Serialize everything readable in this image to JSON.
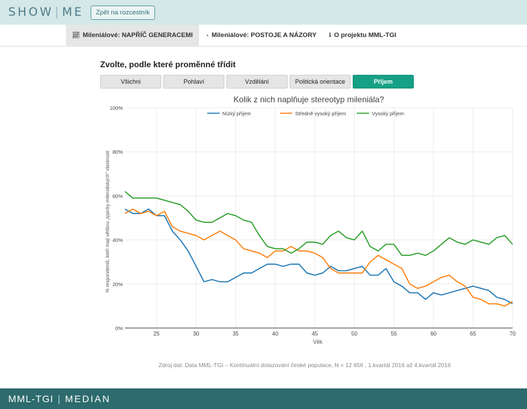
{
  "header": {
    "logo_left": "SHOW",
    "logo_right": "ME",
    "back_label": "Zpět na rozcestník"
  },
  "nav": {
    "items": [
      {
        "label": "Mileniálové: NAPŘÍČ GENERACEMI",
        "icon": "line-chart-icon"
      },
      {
        "label": "Mileniálové: POSTOJE A NÁZORY",
        "icon": "pie-chart-icon"
      },
      {
        "label": "O projektu MML-TGI",
        "icon": "info-icon"
      }
    ]
  },
  "prompt": "Zvolte, podle které proměnné třídit",
  "filters": [
    "Všichni",
    "Pohlaví",
    "Vzdělání",
    "Politická orientace",
    "Příjem"
  ],
  "active_filter": "Příjem",
  "colors": {
    "accent": "#16a085",
    "series_low": "#1f77b4",
    "series_mid": "#ff7f0e",
    "series_high": "#2ca02c"
  },
  "chart_data": {
    "type": "line",
    "title": "Kolik z nich naplňuje stereotyp mileniála?",
    "xlabel": "Věk",
    "ylabel": "% respondentů, kteří mají většinu „typicky mileniálských\" vlastností",
    "xlim": [
      21,
      70
    ],
    "ylim": [
      0,
      100
    ],
    "x_ticks": [
      25,
      30,
      35,
      40,
      45,
      50,
      55,
      60,
      65,
      70
    ],
    "y_ticks": [
      0,
      20,
      40,
      60,
      80,
      100
    ],
    "y_tick_labels": [
      "0%",
      "20%",
      "40%",
      "60%",
      "80%",
      "100%"
    ],
    "legend_position": "top",
    "grid": true,
    "x": [
      21,
      22,
      23,
      24,
      25,
      26,
      27,
      28,
      29,
      30,
      31,
      32,
      33,
      34,
      35,
      36,
      37,
      38,
      39,
      40,
      41,
      42,
      43,
      44,
      45,
      46,
      47,
      48,
      49,
      50,
      51,
      52,
      53,
      54,
      55,
      56,
      57,
      58,
      59,
      60,
      61,
      62,
      63,
      64,
      65,
      66,
      67,
      68,
      69,
      70
    ],
    "series": [
      {
        "name": "Nízký příjem",
        "color": "#1f77b4",
        "values": [
          54,
          52,
          52,
          54,
          51,
          51,
          44,
          40,
          35,
          28,
          21,
          22,
          21,
          21,
          23,
          25,
          25,
          27,
          29,
          29,
          28,
          29,
          29,
          25,
          24,
          25,
          28,
          26,
          26,
          27,
          28,
          24,
          24,
          27,
          21,
          19,
          16,
          16,
          13,
          16,
          15,
          16,
          17,
          18,
          19,
          18,
          17,
          14,
          13,
          11
        ]
      },
      {
        "name": "Středně vysoký příjem",
        "color": "#ff7f0e",
        "values": [
          52,
          54,
          52,
          53,
          51,
          53,
          46,
          44,
          43,
          42,
          40,
          42,
          44,
          42,
          40,
          36,
          35,
          34,
          32,
          35,
          35,
          37,
          35,
          35,
          34,
          32,
          27,
          25,
          25,
          25,
          25,
          30,
          33,
          31,
          29,
          27,
          20,
          18,
          19,
          21,
          23,
          24,
          21,
          19,
          14,
          13,
          11,
          11,
          10,
          12
        ]
      },
      {
        "name": "Vysoký příjem",
        "color": "#2ca02c",
        "values": [
          62,
          59,
          59,
          59,
          59,
          58,
          57,
          56,
          53,
          49,
          48,
          48,
          50,
          52,
          51,
          49,
          48,
          42,
          37,
          36,
          36,
          34,
          36,
          39,
          39,
          38,
          42,
          44,
          41,
          40,
          44,
          37,
          35,
          38,
          38,
          33,
          33,
          34,
          33,
          35,
          38,
          41,
          39,
          38,
          40,
          39,
          38,
          41,
          42,
          38
        ]
      }
    ]
  },
  "source": "Zdroj dat: Data MML-TGI – Kontinuální dotazování české populace, N = 12 656 , 1.kvartál 2016 až 4.kvartál 2016",
  "footer": {
    "left": "MML-TGI",
    "right": "MEDIAN"
  }
}
